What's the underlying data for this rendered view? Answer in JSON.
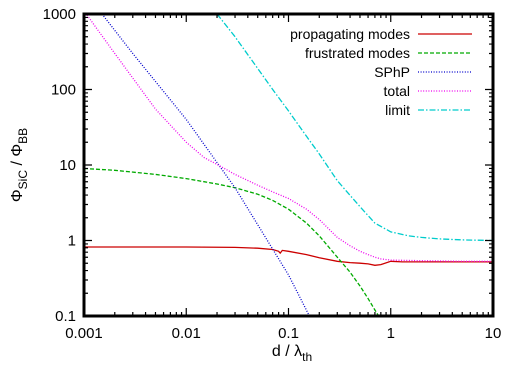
{
  "chart_data": {
    "type": "line",
    "xscale": "log",
    "yscale": "log",
    "xlim": [
      0.001,
      10
    ],
    "ylim": [
      0.1,
      1000
    ],
    "grid": false,
    "legend_position": "top-right",
    "xlabel": {
      "main": "d / λ",
      "sub": "th"
    },
    "ylabel": {
      "main": "Φ",
      "sub1": "SiC",
      "sep": " / Φ",
      "sub2": "BB"
    },
    "x_ticks": [
      {
        "value": 0.001,
        "label": "0.001"
      },
      {
        "value": 0.01,
        "label": "0.01"
      },
      {
        "value": 0.1,
        "label": "0.1"
      },
      {
        "value": 1,
        "label": "1"
      },
      {
        "value": 10,
        "label": "10"
      }
    ],
    "y_ticks": [
      {
        "value": 0.1,
        "label": "0.1"
      },
      {
        "value": 1,
        "label": "1"
      },
      {
        "value": 10,
        "label": "10"
      },
      {
        "value": 100,
        "label": "100"
      },
      {
        "value": 1000,
        "label": "1000"
      }
    ],
    "series": [
      {
        "name": "propagating modes",
        "color": "#cc0000",
        "dash": "solid",
        "points": [
          [
            0.001,
            0.82
          ],
          [
            0.003,
            0.82
          ],
          [
            0.01,
            0.82
          ],
          [
            0.03,
            0.81
          ],
          [
            0.05,
            0.79
          ],
          [
            0.07,
            0.76
          ],
          [
            0.08,
            0.72
          ],
          [
            0.083,
            0.68
          ],
          [
            0.087,
            0.74
          ],
          [
            0.1,
            0.72
          ],
          [
            0.15,
            0.65
          ],
          [
            0.2,
            0.59
          ],
          [
            0.3,
            0.53
          ],
          [
            0.4,
            0.51
          ],
          [
            0.5,
            0.5
          ],
          [
            0.6,
            0.49
          ],
          [
            0.7,
            0.47
          ],
          [
            0.8,
            0.48
          ],
          [
            1.0,
            0.53
          ],
          [
            1.3,
            0.52
          ],
          [
            2,
            0.52
          ],
          [
            5,
            0.52
          ],
          [
            10,
            0.52
          ]
        ]
      },
      {
        "name": "frustrated modes",
        "color": "#00aa00",
        "dash": "dashed",
        "points": [
          [
            0.001,
            9.0
          ],
          [
            0.002,
            8.5
          ],
          [
            0.005,
            7.5
          ],
          [
            0.01,
            6.6
          ],
          [
            0.02,
            5.6
          ],
          [
            0.03,
            5.0
          ],
          [
            0.05,
            4.1
          ],
          [
            0.07,
            3.4
          ],
          [
            0.1,
            2.6
          ],
          [
            0.15,
            1.7
          ],
          [
            0.2,
            1.15
          ],
          [
            0.3,
            0.6
          ],
          [
            0.4,
            0.38
          ],
          [
            0.5,
            0.25
          ],
          [
            0.6,
            0.17
          ],
          [
            0.7,
            0.12
          ],
          [
            0.8,
            0.09
          ]
        ]
      },
      {
        "name": "SPhP",
        "color": "#0000cc",
        "dash": "dotted",
        "points": [
          [
            0.0015,
            1000
          ],
          [
            0.003,
            300
          ],
          [
            0.01,
            40
          ],
          [
            0.03,
            5
          ],
          [
            0.1,
            0.35
          ],
          [
            0.16,
            0.1
          ]
        ]
      },
      {
        "name": "total",
        "color": "#ee00ee",
        "dash": "dotted",
        "points": [
          [
            0.001,
            1100
          ],
          [
            0.002,
            300
          ],
          [
            0.005,
            55
          ],
          [
            0.01,
            20
          ],
          [
            0.015,
            12.5
          ],
          [
            0.02,
            10.2
          ],
          [
            0.03,
            7.5
          ],
          [
            0.05,
            5.4
          ],
          [
            0.07,
            4.4
          ],
          [
            0.1,
            3.6
          ],
          [
            0.15,
            2.6
          ],
          [
            0.2,
            1.9
          ],
          [
            0.3,
            1.1
          ],
          [
            0.4,
            0.85
          ],
          [
            0.5,
            0.72
          ],
          [
            0.6,
            0.65
          ],
          [
            0.7,
            0.6
          ],
          [
            0.8,
            0.57
          ],
          [
            1.0,
            0.55
          ],
          [
            2,
            0.54
          ],
          [
            5,
            0.53
          ],
          [
            10,
            0.53
          ]
        ]
      },
      {
        "name": "limit",
        "color": "#00cccc",
        "dash": "dashdot",
        "points": [
          [
            0.02,
            1000
          ],
          [
            0.03,
            500
          ],
          [
            0.05,
            190
          ],
          [
            0.07,
            100
          ],
          [
            0.1,
            52
          ],
          [
            0.15,
            24
          ],
          [
            0.2,
            14
          ],
          [
            0.3,
            6.2
          ],
          [
            0.5,
            2.8
          ],
          [
            0.7,
            1.7
          ],
          [
            1.0,
            1.3
          ],
          [
            1.5,
            1.15
          ],
          [
            2,
            1.1
          ],
          [
            3,
            1.05
          ],
          [
            5,
            1.02
          ],
          [
            10,
            1.0
          ]
        ]
      }
    ]
  }
}
